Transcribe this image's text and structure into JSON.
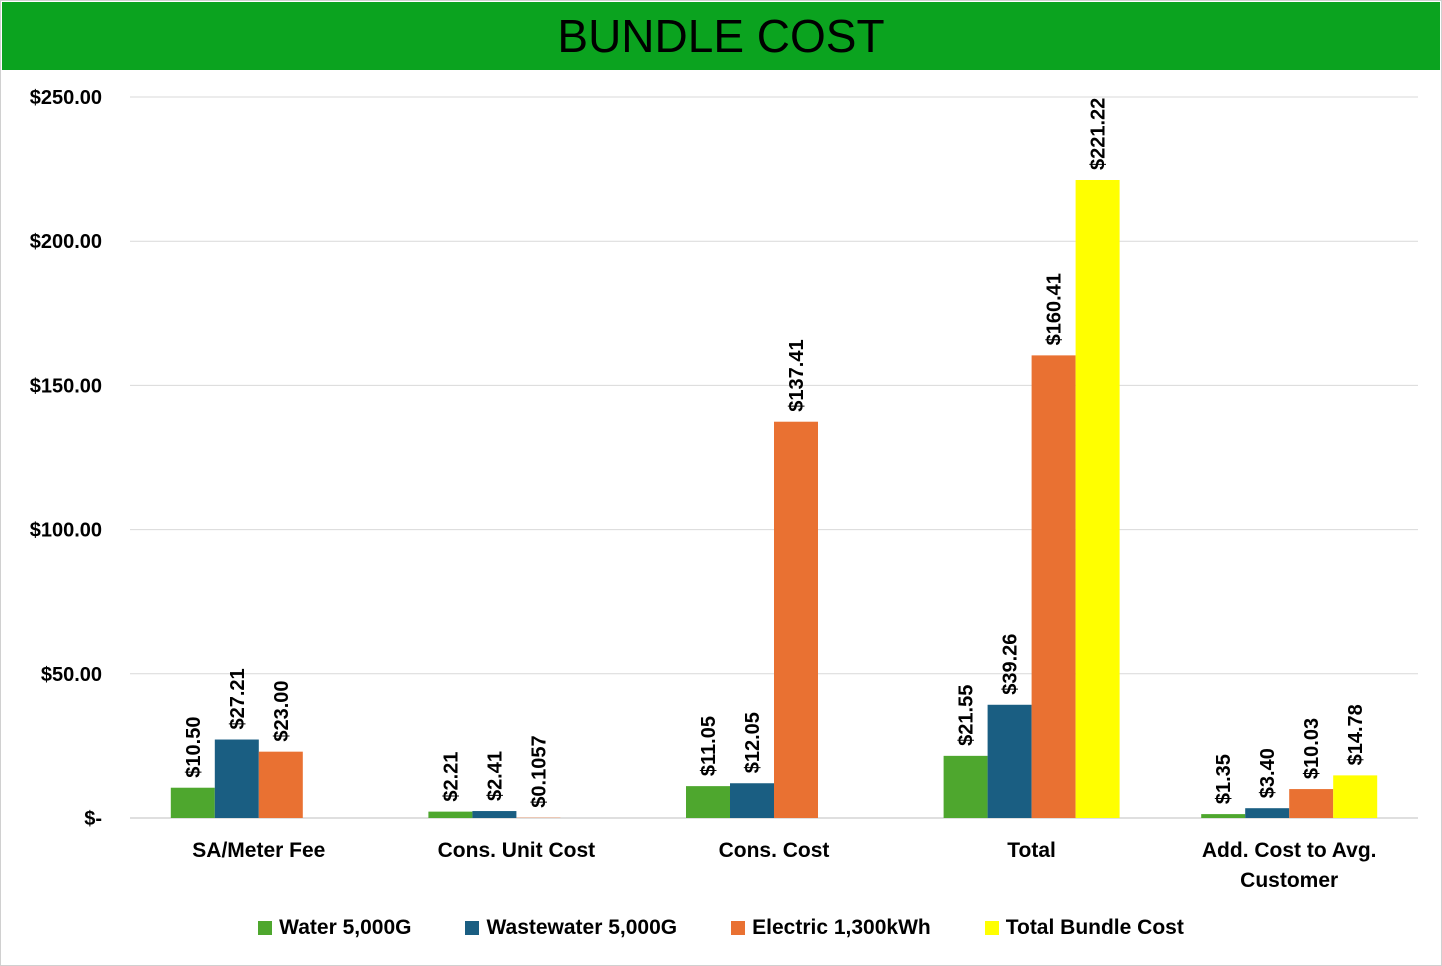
{
  "chart_data": {
    "type": "bar",
    "title": "BUNDLE COST",
    "categories": [
      "SA/Meter Fee",
      "Cons. Unit Cost",
      "Cons. Cost",
      "Total",
      "Add. Cost to Avg. Customer"
    ],
    "series": [
      {
        "name": "Water 5,000G",
        "color": "#4ea72e",
        "values": [
          10.5,
          2.21,
          11.05,
          21.55,
          1.35
        ],
        "value_labels": [
          "$10.50",
          "$2.21",
          "$11.05",
          "$21.55",
          "$1.35"
        ]
      },
      {
        "name": "Wastewater 5,000G",
        "color": "#1a5e82",
        "values": [
          27.21,
          2.41,
          12.05,
          39.26,
          3.4
        ],
        "value_labels": [
          "$27.21",
          "$2.41",
          "$12.05",
          "$39.26",
          "$3.40"
        ]
      },
      {
        "name": "Electric 1,300kWh",
        "color": "#e97132",
        "values": [
          23.0,
          0.1057,
          137.41,
          160.41,
          10.03
        ],
        "value_labels": [
          "$23.00",
          "$0.1057",
          "$137.41",
          "$160.41",
          "$10.03"
        ]
      },
      {
        "name": "Total Bundle Cost",
        "color": "#ffff00",
        "values": [
          null,
          null,
          null,
          221.22,
          14.78
        ],
        "value_labels": [
          null,
          null,
          null,
          "$221.22",
          "$14.78"
        ]
      }
    ],
    "ylim": [
      0,
      250
    ],
    "yticks": [
      {
        "value": 0,
        "label": "$-"
      },
      {
        "value": 50,
        "label": "$50.00"
      },
      {
        "value": 100,
        "label": "$100.00"
      },
      {
        "value": 150,
        "label": "$150.00"
      },
      {
        "value": 200,
        "label": "$200.00"
      },
      {
        "value": 250,
        "label": "$250.00"
      }
    ],
    "grid": true,
    "legend": "bottom"
  }
}
